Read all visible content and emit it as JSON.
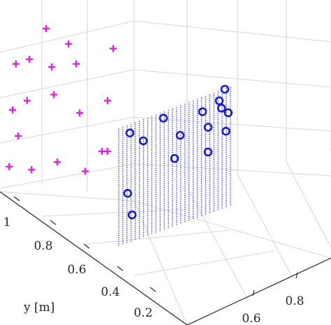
{
  "chart_data": {
    "type": "scatter",
    "title": "",
    "axes": {
      "y": {
        "label": "y [m]",
        "ticks": [
          1,
          0.8,
          0.6,
          0.4,
          0.2
        ],
        "tick_labels": [
          "1",
          "0.8",
          "0.6",
          "0.4",
          "0.2"
        ]
      },
      "x": {
        "label": "",
        "ticks": [
          0.6,
          0.8
        ],
        "tick_labels": [
          "0.6",
          "0.8"
        ]
      }
    },
    "grid": true,
    "colors": {
      "plus": "#e020e0",
      "circle": "#1a1ad0",
      "dots": "#1a1ad0",
      "grid": "#d6d6d6",
      "axis": "#262626"
    },
    "series": [
      {
        "marker": "plus",
        "points": [
          [
            0.05,
            0.42
          ],
          [
            0.35,
            0.95
          ],
          [
            0.62,
            0.72
          ],
          [
            0.18,
            0.48
          ],
          [
            0.42,
            0.52
          ],
          [
            0.65,
            0.4
          ],
          [
            0.9,
            0.48
          ],
          [
            0.02,
            0.05
          ],
          [
            0.22,
            0.03
          ],
          [
            0.45,
            0.08
          ],
          [
            0.7,
            0.02
          ],
          [
            0.9,
            0.15
          ],
          [
            0.08,
            0.72
          ],
          [
            0.4,
            0.7
          ],
          [
            0.85,
            0.15
          ],
          [
            0.2,
            0.75
          ],
          [
            0.55,
            0.85
          ],
          [
            0.95,
            0.82
          ],
          [
            0.1,
            0.25
          ]
        ]
      },
      {
        "marker": "circle",
        "points": [
          [
            0.1,
            0.93
          ],
          [
            0.22,
            0.82
          ],
          [
            0.4,
            0.95
          ],
          [
            0.55,
            0.75
          ],
          [
            0.75,
            0.88
          ],
          [
            0.9,
            0.92
          ],
          [
            0.95,
            1.0
          ],
          [
            0.92,
            0.85
          ],
          [
            0.98,
            0.79
          ],
          [
            0.8,
            0.73
          ],
          [
            0.96,
            0.64
          ],
          [
            0.5,
            0.57
          ],
          [
            0.8,
            0.52
          ],
          [
            0.08,
            0.42
          ],
          [
            0.12,
            0.22
          ]
        ]
      }
    ]
  }
}
